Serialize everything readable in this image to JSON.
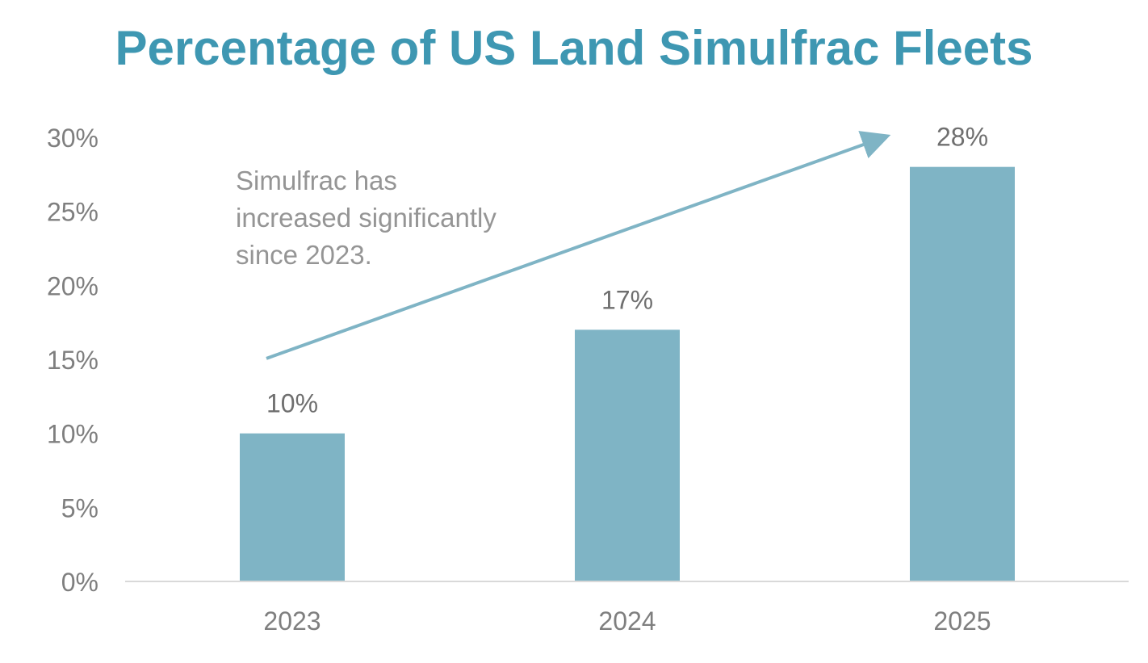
{
  "chart_data": {
    "type": "bar",
    "title": "Percentage of US Land Simulfrac Fleets",
    "xlabel": "",
    "ylabel": "",
    "categories": [
      "2023",
      "2024",
      "2025"
    ],
    "values": [
      10,
      17,
      28
    ],
    "data_labels": [
      "10%",
      "17%",
      "28%"
    ],
    "ylim": [
      0,
      30
    ],
    "y_ticks": [
      0,
      5,
      10,
      15,
      20,
      25,
      30
    ],
    "y_tick_labels": [
      "0%",
      "5%",
      "10%",
      "15%",
      "20%",
      "25%",
      "30%"
    ],
    "grid": false,
    "legend": "none",
    "annotation": {
      "lines": [
        "Simulfrac has",
        "increased significantly",
        "since 2023."
      ],
      "arrow": {
        "from": {
          "x": "2023",
          "y": 15.5
        },
        "to": {
          "x": "2025",
          "y": 30
        }
      }
    }
  },
  "colors": {
    "title": "#3E97B2",
    "bar": "#7FB4C5",
    "arrow": "#7FB4C5",
    "axis": "#d9d9d9",
    "tick_text": "#7f7f7f",
    "data_label_text": "#6f6f6f",
    "annotation_text": "#959595"
  }
}
